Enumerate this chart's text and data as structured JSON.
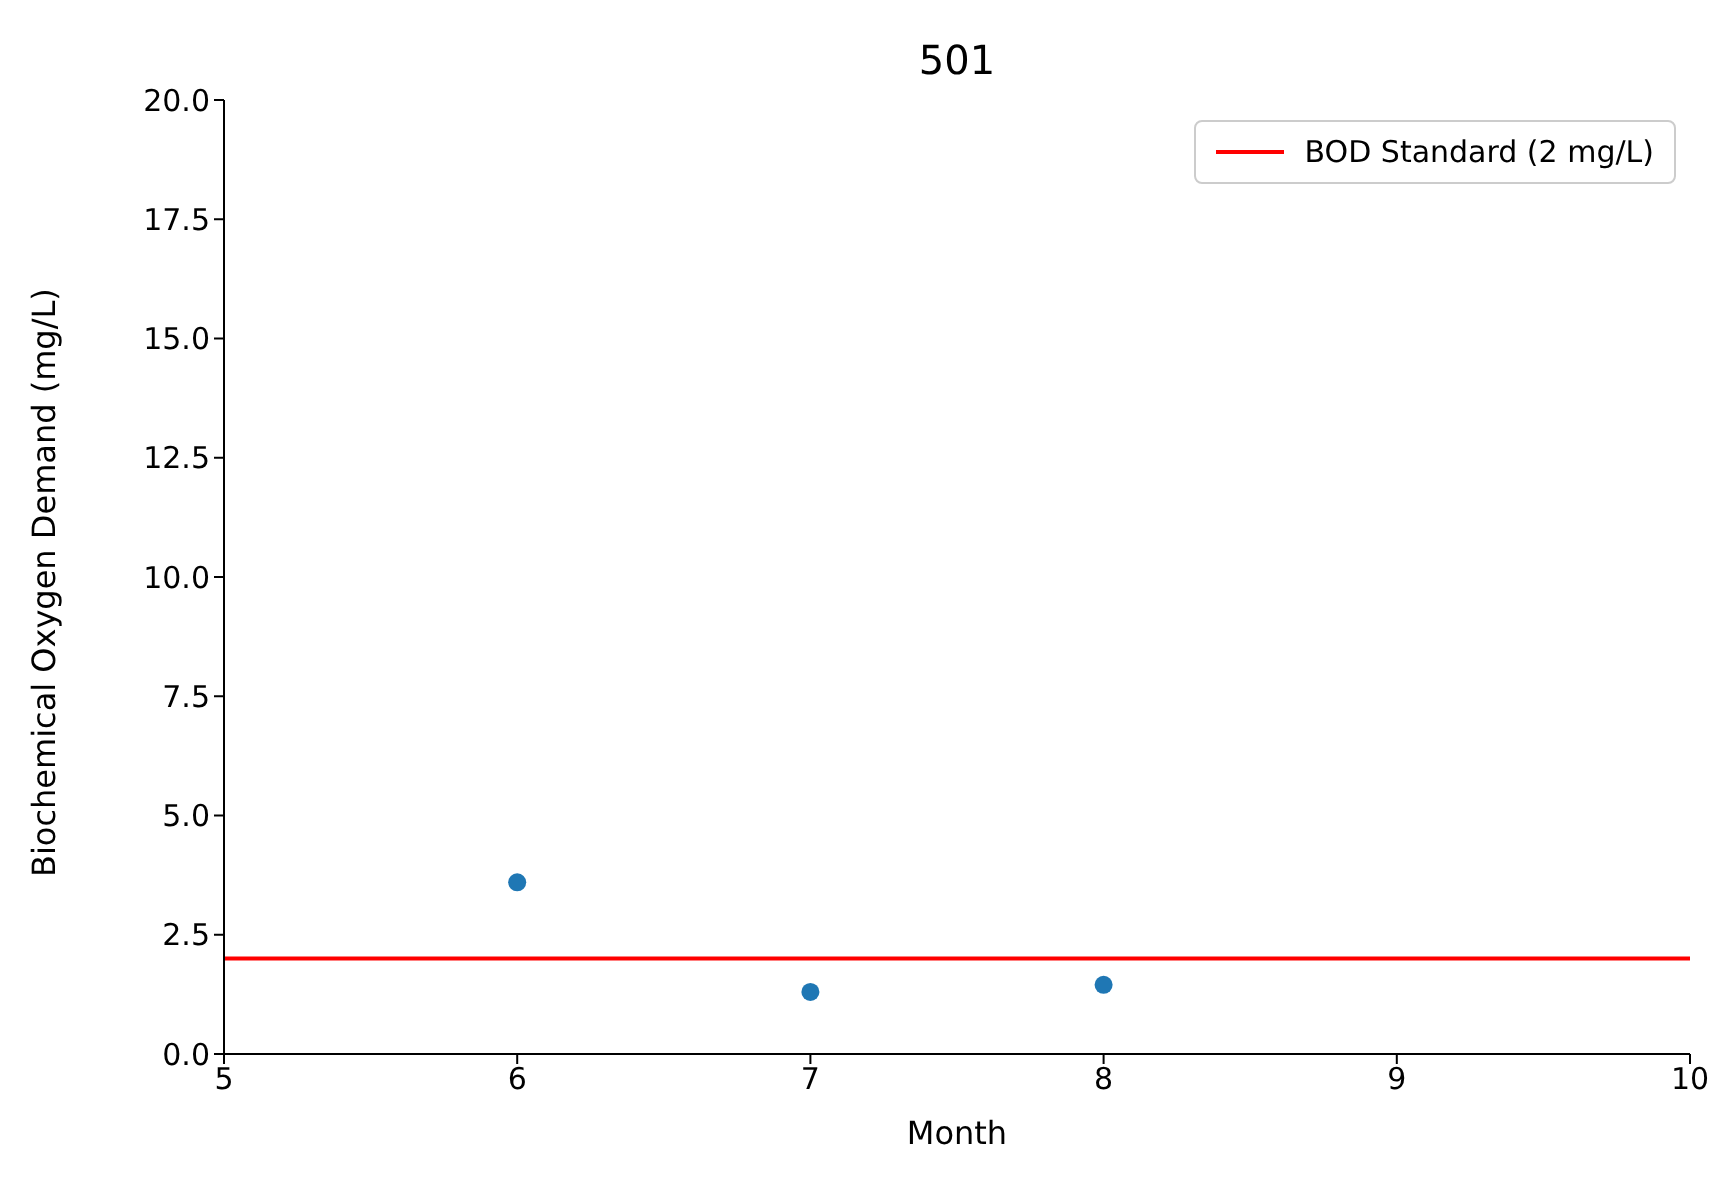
{
  "chart_data": {
    "type": "scatter",
    "title": "501",
    "xlabel": "Month",
    "ylabel": "Biochemical Oxygen Demand (mg/L)",
    "x": [
      6,
      7,
      8
    ],
    "series": [
      {
        "color": "#1f77b4",
        "values": [
          3.6,
          1.3,
          1.45
        ]
      }
    ],
    "xlim": [
      5,
      10
    ],
    "xticks": [
      5,
      6,
      7,
      8,
      9,
      10
    ],
    "ylim": [
      0,
      20
    ],
    "yticks": [
      {
        "value": 0,
        "label": "0.0"
      },
      {
        "value": 2.5,
        "label": "2.5"
      },
      {
        "value": 5,
        "label": "5.0"
      },
      {
        "value": 7.5,
        "label": "7.5"
      },
      {
        "value": 10,
        "label": "10.0"
      },
      {
        "value": 12.5,
        "label": "12.5"
      },
      {
        "value": 15,
        "label": "15.0"
      },
      {
        "value": 17.5,
        "label": "17.5"
      },
      {
        "value": 20,
        "label": "20.0"
      }
    ],
    "ref_lines": [
      {
        "axis": "y",
        "value": 2,
        "label": "BOD Standard (2 mg/L)",
        "color": "#ff0000",
        "line_style": "solid"
      }
    ],
    "legend": "top right",
    "marker": "circle",
    "grid": false
  }
}
